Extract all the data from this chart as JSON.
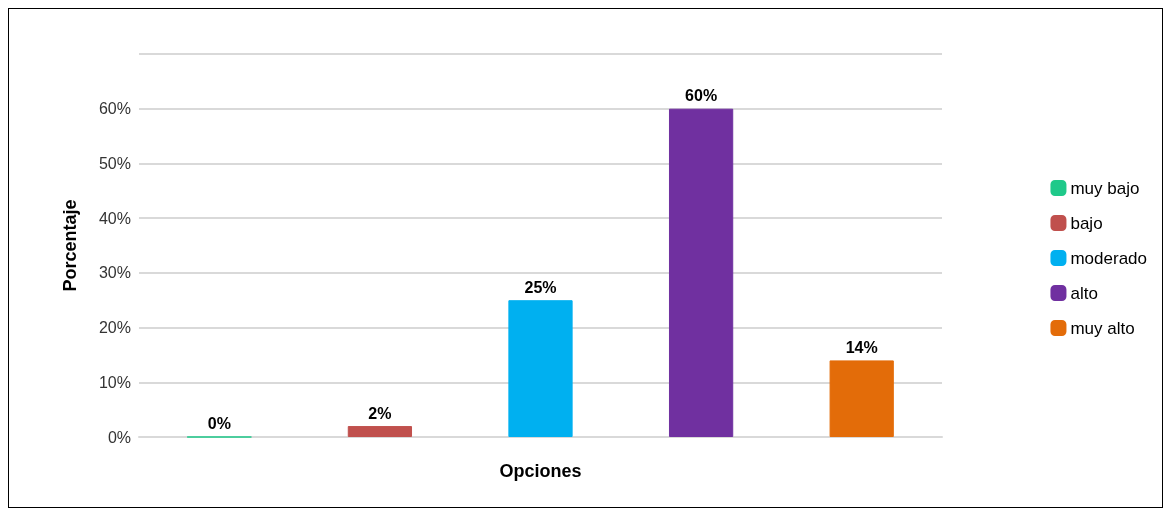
{
  "chart_data": {
    "type": "bar",
    "xlabel": "Opciones",
    "ylabel": "Porcentaje",
    "categories": [
      null,
      null,
      null,
      null,
      null
    ],
    "stacked": true,
    "series": [
      {
        "name": "muy bajo",
        "color": "#1fc98a",
        "values": [
          0,
          null,
          null,
          null,
          null
        ],
        "value_labels": [
          "0%",
          null,
          null,
          null,
          null
        ]
      },
      {
        "name": "bajo",
        "color": "#c0504d",
        "values": [
          null,
          2,
          null,
          null,
          null
        ],
        "value_labels": [
          null,
          "2%",
          null,
          null,
          null
        ]
      },
      {
        "name": "moderado",
        "color": "#00b0f0",
        "values": [
          null,
          null,
          25,
          null,
          null
        ],
        "value_labels": [
          null,
          null,
          "25%",
          null,
          null
        ]
      },
      {
        "name": "alto",
        "color": "#7030a0",
        "values": [
          null,
          null,
          null,
          60,
          null
        ],
        "value_labels": [
          null,
          null,
          null,
          "60%",
          null
        ]
      },
      {
        "name": "muy alto",
        "color": "#e36c09",
        "values": [
          null,
          null,
          null,
          null,
          14
        ],
        "value_labels": [
          null,
          null,
          null,
          null,
          "14%"
        ]
      }
    ],
    "ylim": [
      0,
      70
    ],
    "yticks": [
      {
        "value": 0,
        "label": "0%"
      },
      {
        "value": 10,
        "label": "10%"
      },
      {
        "value": 20,
        "label": "20%"
      },
      {
        "value": 30,
        "label": "30%"
      },
      {
        "value": 40,
        "label": "40%"
      },
      {
        "value": 50,
        "label": "50%"
      },
      {
        "value": 60,
        "label": "60%"
      },
      {
        "value": 70,
        "label": null
      }
    ],
    "grid": "y",
    "legend": "right"
  }
}
